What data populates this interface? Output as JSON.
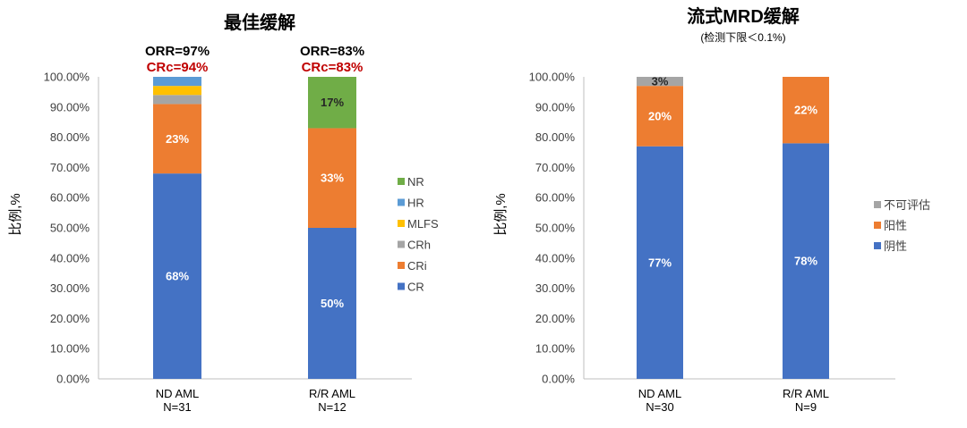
{
  "chart_data": [
    {
      "type": "bar",
      "stacked": true,
      "title": "最佳缓解",
      "subtitle": "",
      "ylabel": "比例,%",
      "ylim": [
        0,
        100
      ],
      "yticks": [
        "0.00%",
        "10.00%",
        "20.00%",
        "30.00%",
        "40.00%",
        "50.00%",
        "60.00%",
        "70.00%",
        "80.00%",
        "90.00%",
        "100.00%"
      ],
      "categories": [
        {
          "name": "ND AML",
          "n": "N=31"
        },
        {
          "name": "R/R AML",
          "n": "N=12"
        }
      ],
      "annotations": [
        {
          "orr": "ORR=97%",
          "crc": "CRc=94%"
        },
        {
          "orr": "ORR=83%",
          "crc": "CRc=83%"
        }
      ],
      "series": [
        {
          "name": "CR",
          "color": "#4472C4",
          "values": [
            68,
            50
          ],
          "labels": [
            "68%",
            "50%"
          ]
        },
        {
          "name": "CRi",
          "color": "#ED7D31",
          "values": [
            23,
            33
          ],
          "labels": [
            "23%",
            "33%"
          ]
        },
        {
          "name": "CRh",
          "color": "#A5A5A5",
          "values": [
            3,
            0
          ],
          "labels": [
            "",
            ""
          ]
        },
        {
          "name": "MLFS",
          "color": "#FFC000",
          "values": [
            3,
            0
          ],
          "labels": [
            "",
            ""
          ]
        },
        {
          "name": "HR",
          "color": "#5B9BD5",
          "values": [
            3,
            0
          ],
          "labels": [
            "",
            ""
          ]
        },
        {
          "name": "NR",
          "color": "#70AD47",
          "values": [
            0,
            17
          ],
          "labels": [
            "",
            "17%"
          ]
        }
      ],
      "legend": [
        "NR",
        "HR",
        "MLFS",
        "CRh",
        "CRi",
        "CR"
      ],
      "legend_position": "right",
      "annotation_colors": {
        "orr": "#000000",
        "crc": "#C00000"
      }
    },
    {
      "type": "bar",
      "stacked": true,
      "title": "流式MRD缓解",
      "subtitle": "(检测下限＜0.1%)",
      "ylabel": "比例,%",
      "ylim": [
        0,
        100
      ],
      "yticks": [
        "0.00%",
        "10.00%",
        "20.00%",
        "30.00%",
        "40.00%",
        "50.00%",
        "60.00%",
        "70.00%",
        "80.00%",
        "90.00%",
        "100.00%"
      ],
      "categories": [
        {
          "name": "ND AML",
          "n": "N=30"
        },
        {
          "name": "R/R AML",
          "n": "N=9"
        }
      ],
      "series": [
        {
          "name": "阴性",
          "color": "#4472C4",
          "values": [
            77,
            78
          ],
          "labels": [
            "77%",
            "78%"
          ]
        },
        {
          "name": "阳性",
          "color": "#ED7D31",
          "values": [
            20,
            22
          ],
          "labels": [
            "20%",
            "22%"
          ]
        },
        {
          "name": "不可评估",
          "color": "#A5A5A5",
          "values": [
            3,
            0
          ],
          "labels": [
            "3%",
            ""
          ]
        }
      ],
      "legend": [
        "不可评估",
        "阳性",
        "阴性"
      ],
      "legend_position": "right"
    }
  ]
}
